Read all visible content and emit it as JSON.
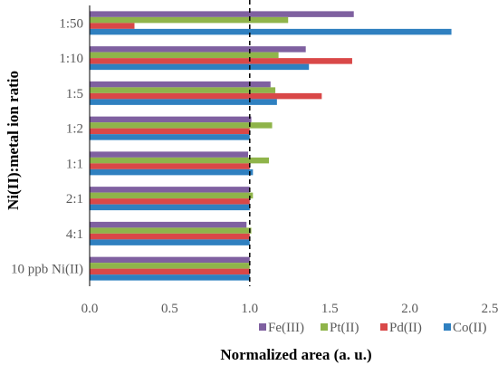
{
  "chart_data": {
    "type": "bar",
    "orientation": "horizontal",
    "title": "",
    "xlabel": "Normalized area (a. u.)",
    "ylabel": "Ni(II):metal ion ratio",
    "xlim": [
      0,
      2.5
    ],
    "x_ticks": [
      "0.0",
      "0.5",
      "1.0",
      "1.5",
      "2.0",
      "2.5"
    ],
    "grid": false,
    "reference_line": {
      "x": 1.0,
      "style": "dashed"
    },
    "legend_position": "bottom-right",
    "categories": [
      "1:50",
      "1:10",
      "1:5",
      "1:2",
      "1:1",
      "2:1",
      "4:1",
      "10 ppb Ni(II)"
    ],
    "series": [
      {
        "name": "Fe(III)",
        "color": "#7f60a0",
        "values": [
          1.65,
          1.35,
          1.13,
          1.01,
          0.99,
          1.0,
          0.98,
          1.0
        ]
      },
      {
        "name": "Pt(II)",
        "color": "#8fb44a",
        "values": [
          1.24,
          1.18,
          1.16,
          1.14,
          1.12,
          1.02,
          1.01,
          1.0
        ]
      },
      {
        "name": "Pd(II)",
        "color": "#d94848",
        "values": [
          0.28,
          1.64,
          1.45,
          1.0,
          1.0,
          1.0,
          1.0,
          1.0
        ]
      },
      {
        "name": "Co(II)",
        "color": "#2f80c0",
        "values": [
          2.26,
          1.37,
          1.17,
          1.0,
          1.02,
          1.0,
          1.0,
          1.0
        ]
      }
    ]
  }
}
